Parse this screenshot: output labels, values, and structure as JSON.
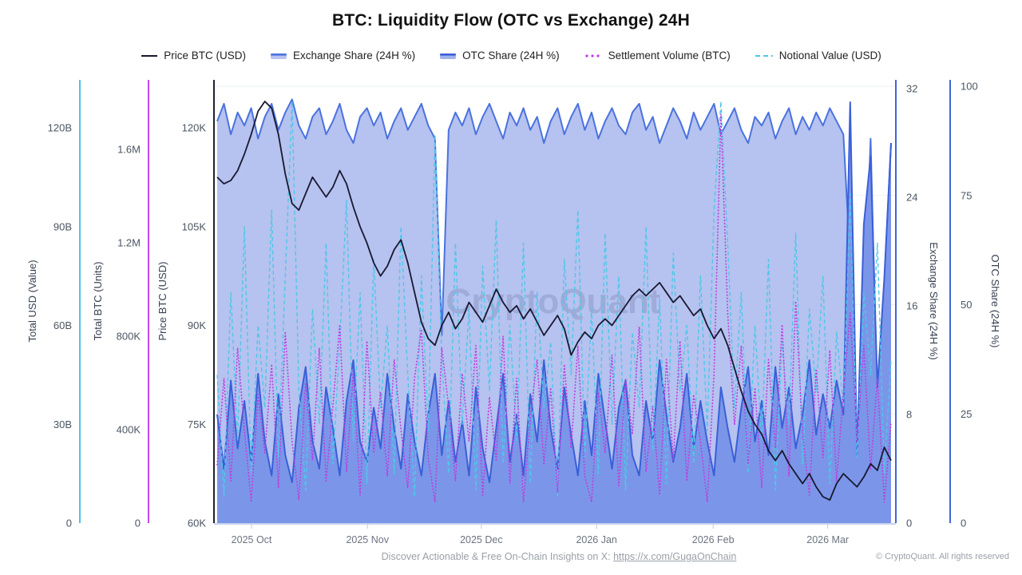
{
  "header": {
    "title": "BTC: Liquidity Flow (OTC vs Exchange) 24H"
  },
  "legend": [
    {
      "label": "Price BTC (USD)",
      "swatch": "black-line"
    },
    {
      "label": "Exchange Share (24H %)",
      "swatch": "blue-area"
    },
    {
      "label": "OTC Share (24H %)",
      "swatch": "blue-area"
    },
    {
      "label": "Settlement Volume (BTC)",
      "swatch": "magenta-dotted"
    },
    {
      "label": "Notional Value (USD)",
      "swatch": "cyan-dashed"
    }
  ],
  "watermark": "CryptoQuant",
  "footer": {
    "promo_prefix": "Discover Actionable & Free On-Chain Insights on X: ",
    "promo_link": "https://x.com/GugaOnChain",
    "copyright": "© CryptoQuant. All rights reserved"
  },
  "chart_data": {
    "type": "area",
    "title": "BTC: Liquidity Flow (OTC vs Exchange) 24H",
    "legend_position": "top",
    "grid": "faint-horizontal",
    "x_ticks": [
      {
        "label": "2025 Oct",
        "f": 0.051
      },
      {
        "label": "2025 Nov",
        "f": 0.223
      },
      {
        "label": "2025 Dec",
        "f": 0.392
      },
      {
        "label": "2026 Jan",
        "f": 0.563
      },
      {
        "label": "2026 Feb",
        "f": 0.736
      },
      {
        "label": "2026 Mar",
        "f": 0.906
      }
    ],
    "axes": [
      {
        "id": "usd",
        "title": "Total USD (Value)",
        "side": "left",
        "color": "#4fc4e9",
        "unit": "billion USD",
        "range": [
          0,
          120
        ],
        "ticks": [
          {
            "v": 0,
            "label": "0"
          },
          {
            "v": 30,
            "label": "30B"
          },
          {
            "v": 60,
            "label": "60B"
          },
          {
            "v": 90,
            "label": "90B"
          },
          {
            "v": 120,
            "label": "120B"
          }
        ]
      },
      {
        "id": "btc",
        "title": "Total BTC (Units)",
        "side": "left",
        "color": "#c04ae8",
        "unit": "thousand BTC",
        "range": [
          0,
          1600
        ],
        "ticks": [
          {
            "v": 0,
            "label": "0"
          },
          {
            "v": 400,
            "label": "400K"
          },
          {
            "v": 800,
            "label": "800K"
          },
          {
            "v": 1200,
            "label": "1.2M"
          },
          {
            "v": 1600,
            "label": "1.6M"
          }
        ]
      },
      {
        "id": "price",
        "title": "Price BTC (USD)",
        "side": "left",
        "color": "#20202a",
        "unit": "thousand USD",
        "range": [
          60,
          120
        ],
        "ticks": [
          {
            "v": 60,
            "label": "60K"
          },
          {
            "v": 75,
            "label": "75K"
          },
          {
            "v": 90,
            "label": "90K"
          },
          {
            "v": 105,
            "label": "105K"
          },
          {
            "v": 120,
            "label": "120K"
          }
        ]
      },
      {
        "id": "exch",
        "title": "Exchange Share (24H %)",
        "side": "right",
        "color": "#3f66d6",
        "unit": "%",
        "range": [
          0,
          32
        ],
        "ticks": [
          {
            "v": 0,
            "label": "0"
          },
          {
            "v": 8,
            "label": "8"
          },
          {
            "v": 16,
            "label": "16"
          },
          {
            "v": 24,
            "label": "24"
          },
          {
            "v": 32,
            "label": "32"
          }
        ]
      },
      {
        "id": "otc",
        "title": "OTC Share (24H %)",
        "side": "right",
        "color": "#3f66d6",
        "unit": "%",
        "range": [
          0,
          100
        ],
        "ticks": [
          {
            "v": 0,
            "label": "0"
          },
          {
            "v": 25,
            "label": "25"
          },
          {
            "v": 50,
            "label": "50"
          },
          {
            "v": 75,
            "label": "75"
          },
          {
            "v": 100,
            "label": "100"
          }
        ]
      }
    ],
    "x_range": [
      "2025 Sep 22",
      "2026 Mar 18"
    ],
    "series": [
      {
        "name": "OTC Share (24H %)",
        "axis": "otc",
        "type": "area",
        "fill": "#b6c2ef",
        "color": "#4a72df",
        "values": [
          92,
          96,
          89,
          94,
          91,
          95,
          88,
          93,
          96,
          90,
          94,
          97,
          91,
          88,
          93,
          95,
          89,
          92,
          96,
          90,
          87,
          93,
          95,
          91,
          94,
          88,
          92,
          95,
          90,
          93,
          96,
          91,
          88,
          43,
          90,
          94,
          91,
          95,
          89,
          93,
          96,
          92,
          88,
          94,
          91,
          95,
          90,
          93,
          87,
          92,
          95,
          89,
          93,
          96,
          90,
          94,
          88,
          92,
          95,
          91,
          89,
          94,
          96,
          90,
          93,
          87,
          91,
          95,
          92,
          88,
          94,
          90,
          93,
          96,
          89,
          92,
          95,
          90,
          87,
          93,
          91,
          94,
          88,
          92,
          95,
          89,
          93,
          90,
          94,
          91,
          95,
          92,
          89,
          60,
          15,
          45,
          88,
          25,
          55,
          87
        ]
      },
      {
        "name": "Exchange Share (24H %)",
        "axis": "exch",
        "type": "area",
        "fill": "#7b96e8",
        "color": "#3a5fd8",
        "values": [
          8,
          4,
          10.5,
          5.5,
          9,
          4.5,
          11,
          6,
          3.5,
          9.5,
          5,
          3,
          8.5,
          11.5,
          6,
          4,
          10,
          7,
          3.5,
          9,
          12,
          6,
          4.5,
          8.5,
          5.5,
          11,
          7,
          4,
          9.5,
          6,
          3.5,
          8,
          11,
          5,
          9,
          4.5,
          7.5,
          3.5,
          10,
          5.5,
          3,
          7,
          11,
          4.5,
          8,
          3.5,
          9.5,
          6,
          12,
          7,
          4,
          10,
          6.5,
          3.5,
          9,
          5,
          11,
          7.5,
          4,
          8.5,
          10.5,
          5,
          3.5,
          9,
          6,
          12,
          8,
          4.5,
          7,
          11,
          5.5,
          9,
          6,
          3.5,
          10,
          7,
          4.5,
          8.5,
          11.5,
          6,
          9,
          5,
          11.5,
          7,
          10,
          5.5,
          8,
          12,
          6.5,
          9.5,
          7,
          10.5,
          8,
          31,
          5,
          22,
          27,
          10,
          18,
          28
        ]
      },
      {
        "name": "Notional Value (USD)",
        "axis": "usd",
        "type": "dashed-line",
        "color": "#4ec7ea",
        "values": [
          45,
          8,
          70,
          25,
          90,
          15,
          60,
          35,
          95,
          20,
          75,
          128,
          40,
          10,
          65,
          30,
          85,
          18,
          55,
          98,
          25,
          70,
          12,
          80,
          35,
          60,
          15,
          90,
          45,
          8,
          75,
          28,
          118,
          50,
          15,
          85,
          30,
          65,
          10,
          78,
          40,
          92,
          18,
          60,
          25,
          85,
          12,
          70,
          35,
          55,
          8,
          80,
          45,
          95,
          20,
          65,
          15,
          88,
          30,
          75,
          10,
          58,
          35,
          90,
          22,
          68,
          12,
          82,
          40,
          60,
          18,
          75,
          28,
          95,
          128,
          85,
          35,
          70,
          15,
          60,
          25,
          80,
          10,
          55,
          30,
          88,
          18,
          65,
          40,
          75,
          12,
          58,
          35,
          100,
          20,
          70,
          45,
          85,
          15,
          50
        ]
      },
      {
        "name": "Settlement Volume (BTC)",
        "axis": "btc",
        "type": "dotted-line",
        "color": "#bd3ce0",
        "values": [
          250,
          620,
          180,
          750,
          400,
          90,
          550,
          300,
          680,
          150,
          820,
          350,
          100,
          600,
          270,
          750,
          180,
          500,
          850,
          220,
          650,
          120,
          780,
          300,
          560,
          200,
          700,
          400,
          150,
          620,
          830,
          280,
          90,
          750,
          500,
          180,
          640,
          350,
          760,
          120,
          540,
          270,
          800,
          170,
          620,
          90,
          450,
          700,
          250,
          580,
          130,
          680,
          320,
          760,
          200,
          90,
          560,
          300,
          720,
          160,
          620,
          380,
          840,
          220,
          500,
          120,
          700,
          270,
          780,
          180,
          550,
          350,
          90,
          640,
          1750,
          900,
          420,
          760,
          250,
          580,
          150,
          700,
          320,
          850,
          200,
          950,
          380,
          120,
          660,
          280,
          740,
          180,
          560,
          900,
          350,
          760,
          230,
          620,
          90,
          430
        ]
      },
      {
        "name": "Price BTC (USD)",
        "axis": "price",
        "type": "line",
        "color": "#181830",
        "values": [
          112.5,
          111.5,
          112,
          113.5,
          116,
          119,
          122.5,
          124,
          123,
          119,
          113,
          108.5,
          107.5,
          110,
          112.5,
          111,
          109.5,
          111,
          113.5,
          111.5,
          108,
          105,
          102.5,
          99.5,
          97.5,
          99,
          101.5,
          103,
          99.5,
          95,
          90.5,
          88,
          87,
          90,
          92,
          89.5,
          91,
          93.5,
          92,
          90.5,
          93,
          95.5,
          93.5,
          92,
          93,
          91,
          92.5,
          90.5,
          88.5,
          90,
          91.5,
          89.5,
          85.5,
          87.5,
          89,
          88,
          90,
          91,
          90,
          91.5,
          93,
          94.5,
          95.5,
          94.5,
          95.5,
          96.5,
          95,
          93.5,
          94.5,
          93,
          91.5,
          92.5,
          90,
          88,
          89.5,
          87,
          83.5,
          80,
          77,
          75,
          73.5,
          71,
          69.5,
          71,
          69,
          67.5,
          66,
          67.5,
          65.5,
          64,
          63.5,
          66,
          67.5,
          66.5,
          65.5,
          67,
          69,
          68,
          71.5,
          69.5
        ]
      }
    ]
  }
}
